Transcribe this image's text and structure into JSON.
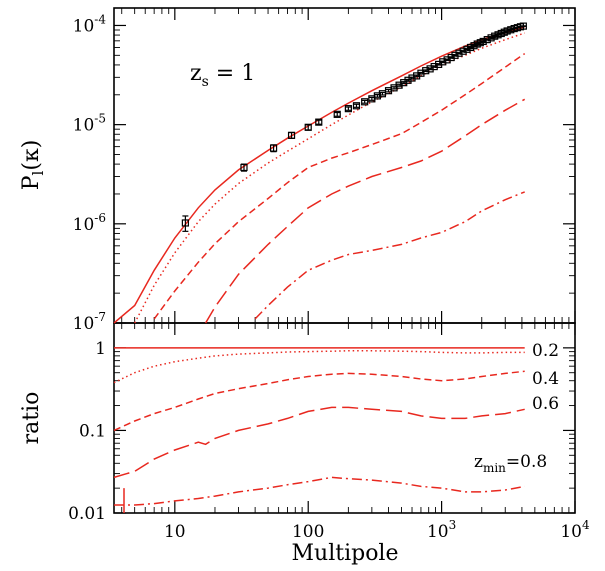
{
  "chart_data": [
    {
      "panel": "top",
      "type": "line",
      "xscale": "log",
      "yscale": "log",
      "xlim": [
        3.5,
        10000
      ],
      "ylim": [
        1e-07,
        0.00015
      ],
      "ylabel": "P_l(κ)",
      "ylabel_main": "P",
      "ylabel_sub": "l",
      "ylabel_arg": "(κ)",
      "yticks": [
        {
          "value": 1e-07,
          "mant": "10",
          "exp": "-7"
        },
        {
          "value": 1e-06,
          "mant": "10",
          "exp": "-6"
        },
        {
          "value": 1e-05,
          "mant": "10",
          "exp": "-5"
        },
        {
          "value": 0.0001,
          "mant": "10",
          "exp": "-4"
        }
      ],
      "annotation": {
        "main": "z",
        "sub": "s",
        "rest": " = 1"
      },
      "series": [
        {
          "dash": "solid",
          "x": [
            3.5,
            5,
            7,
            10,
            15,
            20,
            30,
            50,
            70,
            100,
            150,
            200,
            300,
            500,
            700,
            1000,
            1500,
            2000,
            3000,
            4200
          ],
          "y": [
            5.9e-08,
            1.5e-07,
            3.4e-07,
            7.2e-07,
            1.45e-06,
            2.2e-06,
            3.5e-06,
            5.5e-06,
            7.3e-06,
            9.7e-06,
            1.33e-05,
            1.65e-05,
            2.2e-05,
            3.1e-05,
            3.9e-05,
            4.9e-05,
            6.2e-05,
            7.2e-05,
            8.5e-05,
            9.7e-05
          ]
        },
        {
          "dash": "dotted",
          "x": [
            5,
            7,
            10,
            15,
            20,
            30,
            50,
            70,
            100,
            150,
            200,
            300,
            500,
            700,
            1000,
            1500,
            2000,
            3000,
            4200
          ],
          "y": [
            1e-07,
            2.4e-07,
            5.1e-07,
            1.05e-06,
            1.58e-06,
            2.55e-06,
            4.1e-06,
            5.4e-06,
            7.2e-06,
            1e-05,
            1.25e-05,
            1.7e-05,
            2.4e-05,
            3.1e-05,
            3.95e-05,
            5e-05,
            5.9e-05,
            7.2e-05,
            8.4e-05
          ]
        },
        {
          "dash": "dashed",
          "x": [
            7,
            10,
            15,
            20,
            30,
            50,
            70,
            100,
            150,
            200,
            300,
            500,
            700,
            1000,
            1500,
            2000,
            3000,
            4200
          ],
          "y": [
            1.1e-07,
            2.1e-07,
            4.1e-07,
            6.3e-07,
            1.05e-06,
            1.8e-06,
            2.6e-06,
            3.7e-06,
            4.6e-06,
            5.2e-06,
            6.3e-06,
            8.1e-06,
            1.05e-05,
            1.4e-05,
            2e-05,
            2.6e-05,
            3.8e-05,
            5.2e-05
          ]
        },
        {
          "dash": "longdash",
          "x": [
            17,
            20,
            30,
            50,
            70,
            100,
            150,
            200,
            300,
            500,
            700,
            1000,
            1500,
            2000,
            3000,
            4200
          ],
          "y": [
            1e-07,
            1.45e-07,
            3.1e-07,
            6.2e-07,
            9.4e-07,
            1.45e-06,
            2e-06,
            2.4e-06,
            3e-06,
            3.7e-06,
            4.3e-06,
            5.4e-06,
            7.7e-06,
            1e-05,
            1.4e-05,
            1.8e-05
          ]
        },
        {
          "dash": "dashdot",
          "x": [
            40,
            50,
            70,
            100,
            150,
            200,
            300,
            500,
            700,
            1000,
            1500,
            2000,
            3000,
            4200
          ],
          "y": [
            1.1e-07,
            1.5e-07,
            2.3e-07,
            3.4e-07,
            4.3e-07,
            4.9e-07,
            5.4e-07,
            6.2e-07,
            7.2e-07,
            8.2e-07,
            1.05e-06,
            1.35e-06,
            1.75e-06,
            2.1e-06
          ]
        }
      ],
      "points": {
        "x": [
          12,
          33,
          55,
          75,
          100,
          120,
          165,
          200,
          230,
          265,
          300,
          330,
          360,
          400,
          440,
          480,
          520,
          560,
          600,
          650,
          700,
          760,
          820,
          880,
          950,
          1020,
          1100,
          1180,
          1260,
          1350,
          1450,
          1550,
          1650,
          1750,
          1850,
          1950,
          2050,
          2200,
          2350,
          2500,
          2650,
          2800,
          2950,
          3100,
          3300,
          3500,
          3700,
          3900,
          4100
        ],
        "y": [
          1.02e-06,
          3.7e-06,
          5.8e-06,
          7.8e-06,
          9.4e-06,
          1.06e-05,
          1.27e-05,
          1.45e-05,
          1.55e-05,
          1.7e-05,
          1.82e-05,
          1.95e-05,
          2.05e-05,
          2.2e-05,
          2.35e-05,
          2.5e-05,
          2.65e-05,
          2.8e-05,
          2.95e-05,
          3.1e-05,
          3.3e-05,
          3.5e-05,
          3.65e-05,
          3.85e-05,
          4.05e-05,
          4.3e-05,
          4.5e-05,
          4.75e-05,
          5e-05,
          5.25e-05,
          5.5e-05,
          5.75e-05,
          6e-05,
          6.25e-05,
          6.5e-05,
          6.7e-05,
          6.9e-05,
          7.2e-05,
          7.5e-05,
          7.8e-05,
          8.05e-05,
          8.3e-05,
          8.55e-05,
          8.8e-05,
          9.05e-05,
          9.3e-05,
          9.5e-05,
          9.7e-05,
          9.85e-05
        ],
        "err": [
          1.8e-07,
          3e-07,
          4.6e-07,
          5.2e-07,
          5.5e-07,
          5e-07,
          5.5e-07,
          5.5e-07,
          5.5e-07,
          5.5e-07,
          6e-07,
          6e-07,
          6e-07,
          6e-07,
          6e-07,
          6e-07,
          6e-07,
          6e-07,
          6e-07,
          6e-07,
          6e-07,
          6e-07,
          6e-07,
          6e-07,
          6e-07,
          6e-07,
          6e-07,
          6e-07,
          6e-07,
          6e-07,
          6e-07,
          6e-07,
          6e-07,
          6e-07,
          6e-07,
          6e-07,
          6e-07,
          6e-07,
          6e-07,
          6e-07,
          6e-07,
          6e-07,
          6e-07,
          6e-07,
          6e-07,
          6e-07,
          6e-07,
          6e-07,
          6e-07
        ]
      }
    },
    {
      "panel": "bottom",
      "type": "line",
      "xscale": "log",
      "yscale": "log",
      "xlim": [
        3.5,
        10000
      ],
      "ylim": [
        0.01,
        2
      ],
      "xlabel": "Multipole",
      "ylabel": "ratio",
      "yticks": [
        {
          "value": 0.01,
          "label": "0.01"
        },
        {
          "value": 0.1,
          "label": "0.1"
        },
        {
          "value": 1,
          "label": "1"
        }
      ],
      "xticks": [
        {
          "value": 10,
          "mant": "10",
          "exp": ""
        },
        {
          "value": 100,
          "mant": "100",
          "exp": ""
        },
        {
          "value": 1000,
          "mant": "10",
          "exp": "3"
        },
        {
          "value": 10000,
          "mant": "10",
          "exp": "4"
        }
      ],
      "curve_labels": [
        {
          "value": 0.2,
          "text": "0.2",
          "main": "",
          "sub": ""
        },
        {
          "value": 0.4,
          "text": "0.4",
          "main": "",
          "sub": ""
        },
        {
          "value": 0.6,
          "text": "0.6",
          "main": "",
          "sub": ""
        },
        {
          "value": 0.8,
          "text": "=0.8",
          "main": "z",
          "sub": "min"
        }
      ],
      "series": [
        {
          "dash": "solid",
          "x": [
            3.5,
            100,
            1000,
            4200
          ],
          "y": [
            1,
            1,
            1,
            1
          ]
        },
        {
          "dash": "dotted",
          "x": [
            3.5,
            5,
            7,
            10,
            15,
            20,
            30,
            50,
            70,
            100,
            150,
            200,
            300,
            500,
            700,
            1000,
            1500,
            2000,
            3000,
            4200
          ],
          "y": [
            0.38,
            0.5,
            0.6,
            0.68,
            0.75,
            0.8,
            0.84,
            0.87,
            0.89,
            0.9,
            0.91,
            0.92,
            0.92,
            0.91,
            0.9,
            0.88,
            0.87,
            0.87,
            0.88,
            0.88
          ]
        },
        {
          "dash": "dashed",
          "x": [
            3.5,
            5,
            7,
            10,
            15,
            20,
            30,
            50,
            70,
            100,
            150,
            200,
            300,
            500,
            700,
            1000,
            1500,
            2000,
            3000,
            4200
          ],
          "y": [
            0.1,
            0.13,
            0.16,
            0.19,
            0.24,
            0.28,
            0.32,
            0.37,
            0.41,
            0.45,
            0.48,
            0.49,
            0.48,
            0.45,
            0.42,
            0.4,
            0.42,
            0.45,
            0.49,
            0.52
          ]
        },
        {
          "dash": "longdash",
          "x": [
            3.5,
            5,
            7,
            10,
            15,
            17,
            20,
            30,
            50,
            70,
            100,
            150,
            200,
            300,
            500,
            700,
            1000,
            1500,
            2000,
            3000,
            4200
          ],
          "y": [
            0.027,
            0.032,
            0.045,
            0.058,
            0.072,
            0.068,
            0.08,
            0.1,
            0.12,
            0.14,
            0.17,
            0.19,
            0.19,
            0.18,
            0.17,
            0.15,
            0.14,
            0.14,
            0.15,
            0.16,
            0.18
          ]
        },
        {
          "dash": "dashdot",
          "x": [
            3.5,
            5,
            7,
            10,
            15,
            20,
            30,
            50,
            70,
            100,
            150,
            200,
            300,
            500,
            700,
            1000,
            1500,
            2000,
            3000,
            4200
          ],
          "y": [
            0.0125,
            0.0125,
            0.013,
            0.014,
            0.015,
            0.016,
            0.018,
            0.02,
            0.022,
            0.024,
            0.027,
            0.026,
            0.025,
            0.023,
            0.021,
            0.02,
            0.018,
            0.018,
            0.019,
            0.021
          ]
        }
      ]
    }
  ]
}
